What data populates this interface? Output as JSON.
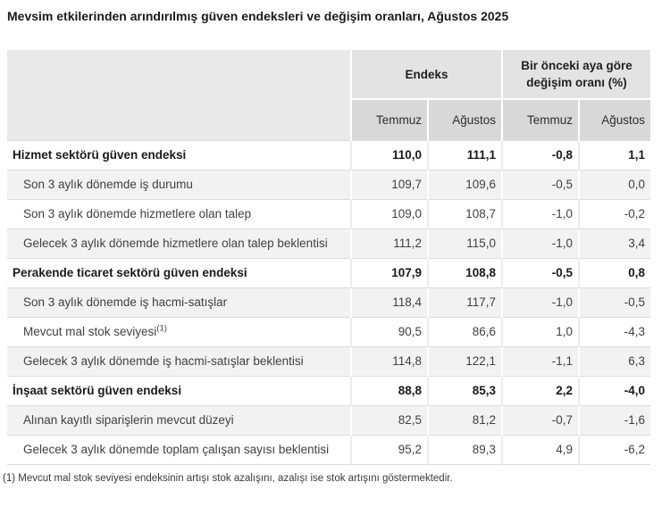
{
  "title": "Mevsim etkilerinden arındırılmış güven endeksleri ve değişim oranları, Ağustos 2025",
  "footnote": "(1) Mevcut mal stok seviyesi endeksinin artışı stok azalışını, azalışı ise stok artışını göstermektedir.",
  "colors": {
    "group_header_bg": "#e3e3e3",
    "subheader_bg": "#d8d8d8",
    "corner_header_bg": "#e9e9e9",
    "alt_row_bg": "#f2f2f2",
    "row_border": "#dcdcdc",
    "bold_text": "#1a1a1a",
    "body_text": "#404040"
  },
  "chart_data": {
    "type": "table",
    "title": "Mevsim etkilerinden arındırılmış güven endeksleri ve değişim oranları, Ağustos 2025",
    "column_groups": [
      {
        "label": "Endeks",
        "span": 2
      },
      {
        "label": "Bir önceki aya göre değişim oranı (%)",
        "span": 2
      }
    ],
    "columns": [
      "Temmuz",
      "Ağustos",
      "Temmuz",
      "Ağustos"
    ],
    "rows": [
      {
        "label": "Hizmet sektörü güven endeksi",
        "bold": true,
        "values": [
          "110,0",
          "111,1",
          "-0,8",
          "1,1"
        ],
        "values_numeric": [
          110.0,
          111.1,
          -0.8,
          1.1
        ]
      },
      {
        "label": "Son 3 aylık dönemde iş durumu",
        "bold": false,
        "values": [
          "109,7",
          "109,6",
          "-0,5",
          "0,0"
        ],
        "values_numeric": [
          109.7,
          109.6,
          -0.5,
          0.0
        ]
      },
      {
        "label": "Son 3 aylık dönemde hizmetlere olan talep",
        "bold": false,
        "values": [
          "109,0",
          "108,7",
          "-1,0",
          "-0,2"
        ],
        "values_numeric": [
          109.0,
          108.7,
          -1.0,
          -0.2
        ]
      },
      {
        "label": "Gelecek 3 aylık dönemde hizmetlere olan talep beklentisi",
        "bold": false,
        "values": [
          "111,2",
          "115,0",
          "-1,0",
          "3,4"
        ],
        "values_numeric": [
          111.2,
          115.0,
          -1.0,
          3.4
        ]
      },
      {
        "label": "Perakende ticaret sektörü güven endeksi",
        "bold": true,
        "values": [
          "107,9",
          "108,8",
          "-0,5",
          "0,8"
        ],
        "values_numeric": [
          107.9,
          108.8,
          -0.5,
          0.8
        ]
      },
      {
        "label": "Son 3 aylık dönemde iş hacmi-satışlar",
        "bold": false,
        "values": [
          "118,4",
          "117,7",
          "-1,0",
          "-0,5"
        ],
        "values_numeric": [
          118.4,
          117.7,
          -1.0,
          -0.5
        ]
      },
      {
        "label": "Mevcut mal stok seviyesi",
        "label_superscript": "(1)",
        "bold": false,
        "values": [
          "90,5",
          "86,6",
          "1,0",
          "-4,3"
        ],
        "values_numeric": [
          90.5,
          86.6,
          1.0,
          -4.3
        ]
      },
      {
        "label": "Gelecek 3 aylık dönemde iş hacmi-satışlar beklentisi",
        "bold": false,
        "values": [
          "114,8",
          "122,1",
          "-1,1",
          "6,3"
        ],
        "values_numeric": [
          114.8,
          122.1,
          -1.1,
          6.3
        ]
      },
      {
        "label": "İnşaat sektörü güven endeksi",
        "bold": true,
        "values": [
          "88,8",
          "85,3",
          "2,2",
          "-4,0"
        ],
        "values_numeric": [
          88.8,
          85.3,
          2.2,
          -4.0
        ]
      },
      {
        "label": "Alınan kayıtlı siparişlerin mevcut düzeyi",
        "bold": false,
        "values": [
          "82,5",
          "81,2",
          "-0,7",
          "-1,6"
        ],
        "values_numeric": [
          82.5,
          81.2,
          -0.7,
          -1.6
        ]
      },
      {
        "label": "Gelecek 3 aylık dönemde toplam çalışan sayısı beklentisi",
        "bold": false,
        "values": [
          "95,2",
          "89,3",
          "4,9",
          "-6,2"
        ],
        "values_numeric": [
          95.2,
          89.3,
          4.9,
          -6.2
        ]
      }
    ]
  }
}
